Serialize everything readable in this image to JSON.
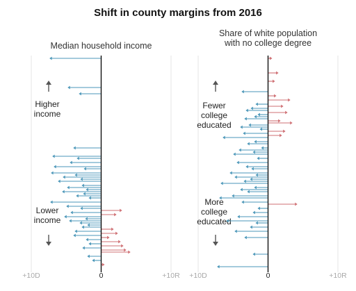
{
  "title": "Shift in county margins from 2016",
  "colors": {
    "dem": "#4a96b8",
    "rep": "#cf6f73",
    "axis": "#111111",
    "grid": "#e4e4e4",
    "arrow_icon": "#555555"
  },
  "chart_data": [
    {
      "type": "arrow-dot",
      "panel": "left",
      "subtitle": "Median household income",
      "top_label": [
        "Higher",
        "income"
      ],
      "bottom_label": [
        "Lower",
        "income"
      ],
      "top_icon": "up-arrow-icon",
      "bottom_icon": "down-arrow-icon",
      "xlim": [
        -10,
        10
      ],
      "tick_labels": {
        "left": "+10D",
        "center": "0",
        "right": "+10R"
      },
      "row_range": [
        0,
        100
      ],
      "shifts": [
        {
          "row": 0,
          "shift": -7.4
        },
        {
          "row": 14,
          "shift": -4.8
        },
        {
          "row": 17,
          "shift": -3.2
        },
        {
          "row": 43,
          "shift": -4.0
        },
        {
          "row": 47,
          "shift": -7.0
        },
        {
          "row": 48,
          "shift": -3.5
        },
        {
          "row": 50,
          "shift": -4.5
        },
        {
          "row": 52,
          "shift": -6.8
        },
        {
          "row": 53,
          "shift": -2.5
        },
        {
          "row": 55,
          "shift": -7.2
        },
        {
          "row": 56,
          "shift": -3.8
        },
        {
          "row": 57,
          "shift": -5.5
        },
        {
          "row": 58,
          "shift": -3.0
        },
        {
          "row": 59,
          "shift": -6.2
        },
        {
          "row": 61,
          "shift": -2.8
        },
        {
          "row": 62,
          "shift": -4.9
        },
        {
          "row": 63,
          "shift": -2.2
        },
        {
          "row": 64,
          "shift": -5.6
        },
        {
          "row": 65,
          "shift": -2.6
        },
        {
          "row": 66,
          "shift": -3.6
        },
        {
          "row": 67,
          "shift": -1.8
        },
        {
          "row": 69,
          "shift": -7.3
        },
        {
          "row": 71,
          "shift": -5.0
        },
        {
          "row": 72,
          "shift": -3.0
        },
        {
          "row": 73,
          "shift": 3.0
        },
        {
          "row": 74,
          "shift": -4.4
        },
        {
          "row": 75,
          "shift": 2.2
        },
        {
          "row": 76,
          "shift": -5.3
        },
        {
          "row": 77,
          "shift": -2.3
        },
        {
          "row": 78,
          "shift": -4.6
        },
        {
          "row": 79,
          "shift": -3.1
        },
        {
          "row": 80,
          "shift": -2.0
        },
        {
          "row": 81,
          "shift": -2.8
        },
        {
          "row": 82,
          "shift": 1.8
        },
        {
          "row": 83,
          "shift": -3.8
        },
        {
          "row": 84,
          "shift": 2.4
        },
        {
          "row": 85,
          "shift": -4.0
        },
        {
          "row": 86,
          "shift": 1.2
        },
        {
          "row": 87,
          "shift": -2.2
        },
        {
          "row": 88,
          "shift": 2.8
        },
        {
          "row": 89,
          "shift": -1.8
        },
        {
          "row": 90,
          "shift": 3.2
        },
        {
          "row": 91,
          "shift": -2.7
        },
        {
          "row": 92,
          "shift": 3.6
        },
        {
          "row": 93,
          "shift": 4.2
        },
        {
          "row": 95,
          "shift": -2.0
        },
        {
          "row": 97,
          "shift": -1.3
        },
        {
          "row": 99,
          "shift": 0.5
        }
      ]
    },
    {
      "type": "arrow-dot",
      "panel": "right",
      "subtitle": [
        "Share of white population",
        "with no college degree"
      ],
      "top_label": [
        "Fewer",
        "college",
        "educated"
      ],
      "bottom_label": [
        "More",
        "college",
        "educated"
      ],
      "top_icon": "up-arrow-icon",
      "bottom_icon": "down-arrow-icon",
      "xlim": [
        -10,
        10
      ],
      "tick_labels": {
        "left": "+10D",
        "center": "0",
        "right": "+10R"
      },
      "row_range": [
        0,
        100
      ],
      "shifts": [
        {
          "row": 0,
          "shift": 0.6
        },
        {
          "row": 7,
          "shift": 1.5
        },
        {
          "row": 11,
          "shift": 1.0
        },
        {
          "row": 16,
          "shift": -3.8
        },
        {
          "row": 18,
          "shift": 1.2
        },
        {
          "row": 20,
          "shift": 3.2
        },
        {
          "row": 22,
          "shift": -1.8
        },
        {
          "row": 23,
          "shift": 2.2
        },
        {
          "row": 24,
          "shift": -2.5
        },
        {
          "row": 25,
          "shift": -3.2
        },
        {
          "row": 26,
          "shift": 2.8
        },
        {
          "row": 27,
          "shift": -1.5
        },
        {
          "row": 28,
          "shift": -2.0
        },
        {
          "row": 29,
          "shift": -3.4
        },
        {
          "row": 30,
          "shift": 1.8
        },
        {
          "row": 31,
          "shift": 3.5
        },
        {
          "row": 32,
          "shift": -2.8
        },
        {
          "row": 33,
          "shift": -4.0
        },
        {
          "row": 34,
          "shift": -1.2
        },
        {
          "row": 35,
          "shift": 2.5
        },
        {
          "row": 36,
          "shift": -3.6
        },
        {
          "row": 37,
          "shift": 2.0
        },
        {
          "row": 38,
          "shift": -6.5
        },
        {
          "row": 40,
          "shift": -2.0
        },
        {
          "row": 41,
          "shift": -3.0
        },
        {
          "row": 43,
          "shift": -1.0
        },
        {
          "row": 44,
          "shift": -4.2
        },
        {
          "row": 45,
          "shift": -2.2
        },
        {
          "row": 46,
          "shift": -5.0
        },
        {
          "row": 48,
          "shift": -1.6
        },
        {
          "row": 50,
          "shift": -4.5
        },
        {
          "row": 52,
          "shift": -3.2
        },
        {
          "row": 53,
          "shift": -2.4
        },
        {
          "row": 55,
          "shift": -5.5
        },
        {
          "row": 56,
          "shift": -1.8
        },
        {
          "row": 57,
          "shift": -4.8
        },
        {
          "row": 58,
          "shift": -2.6
        },
        {
          "row": 59,
          "shift": -3.5
        },
        {
          "row": 60,
          "shift": -6.8
        },
        {
          "row": 62,
          "shift": -2.0
        },
        {
          "row": 63,
          "shift": -4.0
        },
        {
          "row": 64,
          "shift": -3.0
        },
        {
          "row": 66,
          "shift": -5.2
        },
        {
          "row": 67,
          "shift": -7.0
        },
        {
          "row": 69,
          "shift": -3.8
        },
        {
          "row": 70,
          "shift": 4.2
        },
        {
          "row": 72,
          "shift": -1.5
        },
        {
          "row": 74,
          "shift": -2.2
        },
        {
          "row": 76,
          "shift": -4.4
        },
        {
          "row": 78,
          "shift": -6.0
        },
        {
          "row": 79,
          "shift": -1.8
        },
        {
          "row": 81,
          "shift": -2.6
        },
        {
          "row": 83,
          "shift": -4.8
        },
        {
          "row": 86,
          "shift": -3.4
        },
        {
          "row": 94,
          "shift": -2.2
        },
        {
          "row": 100,
          "shift": -7.3
        }
      ]
    }
  ]
}
